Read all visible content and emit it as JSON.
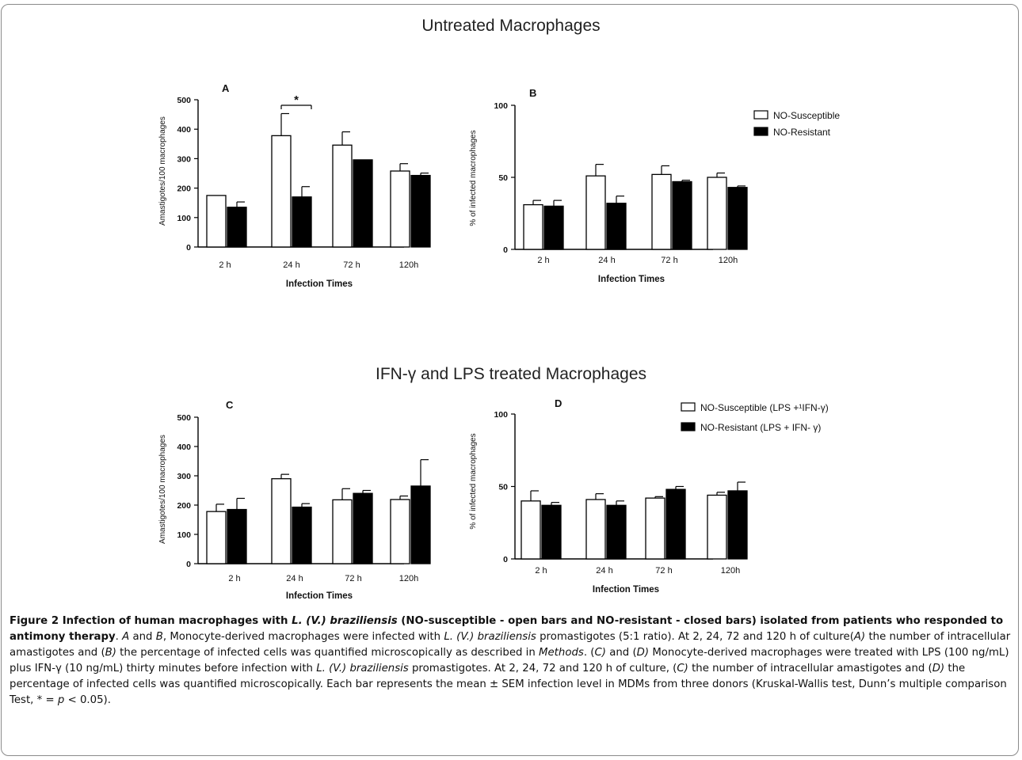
{
  "section_titles": {
    "top": "Untreated Macrophages",
    "bottom": "IFN-γ and LPS treated Macrophages"
  },
  "colors": {
    "open_bar": "#ffffff",
    "closed_bar": "#000000",
    "axis": "#000000"
  },
  "chart_data": [
    {
      "panel": "A",
      "type": "bar",
      "ylabel": "Amastigotes/100 macrophages",
      "xlabel": "Infection Times",
      "categories": [
        "2 h",
        "24 h",
        "72 h",
        "120h"
      ],
      "ylim": [
        0,
        500
      ],
      "yticks": [
        "0",
        "100",
        "200",
        "300",
        "400",
        "500"
      ],
      "series": [
        {
          "values": [
            175,
            378,
            346,
            258
          ],
          "errors": [
            0,
            75,
            45,
            25
          ],
          "fill": "open"
        },
        {
          "values": [
            135,
            170,
            296,
            243
          ],
          "errors": [
            18,
            35,
            0,
            8
          ],
          "fill": "closed"
        }
      ],
      "annotation": "*",
      "legend": "none"
    },
    {
      "panel": "B",
      "type": "bar",
      "ylabel": "% of infected macrophages",
      "xlabel": "Infection Times",
      "categories": [
        "2 h",
        "24 h",
        "72 h",
        "120h"
      ],
      "ylim": [
        0,
        100
      ],
      "yticks": [
        "0",
        "50",
        "100"
      ],
      "series": [
        {
          "name": "NO-Susceptible",
          "values": [
            31,
            51,
            52,
            50
          ],
          "errors": [
            3,
            8,
            6,
            3
          ],
          "fill": "open"
        },
        {
          "name": "NO-Resistant",
          "values": [
            30,
            32,
            47,
            43
          ],
          "errors": [
            4,
            5,
            1,
            1
          ],
          "fill": "closed"
        }
      ],
      "legend": "right"
    },
    {
      "panel": "C",
      "type": "bar",
      "ylabel": "Amastigotes/100 macrophages",
      "xlabel": "Infection Times",
      "categories": [
        "2 h",
        "24 h",
        "72 h",
        "120h"
      ],
      "ylim": [
        0,
        500
      ],
      "yticks": [
        "0",
        "100",
        "200",
        "300",
        "400",
        "500"
      ],
      "series": [
        {
          "values": [
            178,
            290,
            218,
            219
          ],
          "errors": [
            25,
            15,
            38,
            12
          ],
          "fill": "open"
        },
        {
          "values": [
            185,
            193,
            240,
            265
          ],
          "errors": [
            38,
            12,
            10,
            90
          ],
          "fill": "closed"
        }
      ],
      "legend": "none"
    },
    {
      "panel": "D",
      "type": "bar",
      "ylabel": "% of infected macrophages",
      "xlabel": "Infection Times",
      "categories": [
        "2 h",
        "24 h",
        "72 h",
        "120h"
      ],
      "ylim": [
        0,
        100
      ],
      "yticks": [
        "0",
        "50",
        "100"
      ],
      "series": [
        {
          "name": "NO-Susceptible (LPS +¹IFN-γ)",
          "values": [
            40,
            41,
            42,
            44
          ],
          "errors": [
            7,
            4,
            1,
            2
          ],
          "fill": "open"
        },
        {
          "name": "NO-Resistant (LPS + IFN- γ)",
          "values": [
            37,
            37,
            48,
            47
          ],
          "errors": [
            2,
            3,
            2,
            6
          ],
          "fill": "closed"
        }
      ],
      "legend": "top-right"
    }
  ],
  "caption": {
    "figure_label": "Figure 2",
    "title_a": "Infection of human macrophages with ",
    "title_species": "L. (V.) braziliensis",
    "title_b": " (NO-susceptible - open bars and NO-resistant - closed bars) isolated from patients who responded to antimony therapy",
    "s1": ". ",
    "it_A": "A",
    "s2": " and ",
    "it_B": "B",
    "s3": ", Monocyte-derived macrophages were infected with ",
    "it_species1": "L. (V.) braziliensis",
    "s4": " promastigotes (5:1 ratio). At 2, 24, 72 and 120 h of culture(",
    "it_A2": "A)",
    "s5": " the number of intracellular amastigotes and (",
    "it_B2": "B)",
    "s6": " the percentage of infected cells was quantified microscopically as described in ",
    "it_methods": "Methods",
    "s7": ". (",
    "it_C": "C)",
    "s8": " and (",
    "it_D": "D)",
    "s9": " Monocyte-derived macrophages were treated with LPS (100 ng/mL) plus IFN-γ (10 ng/mL) thirty minutes before infection with ",
    "it_species2": "L. (V.) braziliensis",
    "s10": " promastigotes. At 2, 24, 72 and 120 h of culture, (",
    "it_C2": "C)",
    "s11": " the number of intracellular amastigotes and (",
    "it_D2": "D)",
    "s12": " the percentage of infected cells was quantified microscopically. Each bar represents the mean ± SEM infection level in MDMs from three donors (Kruskal-Wallis test, Dunn’s multiple comparison Test, * = ",
    "it_p": "p",
    "s13": " < 0.05)."
  }
}
